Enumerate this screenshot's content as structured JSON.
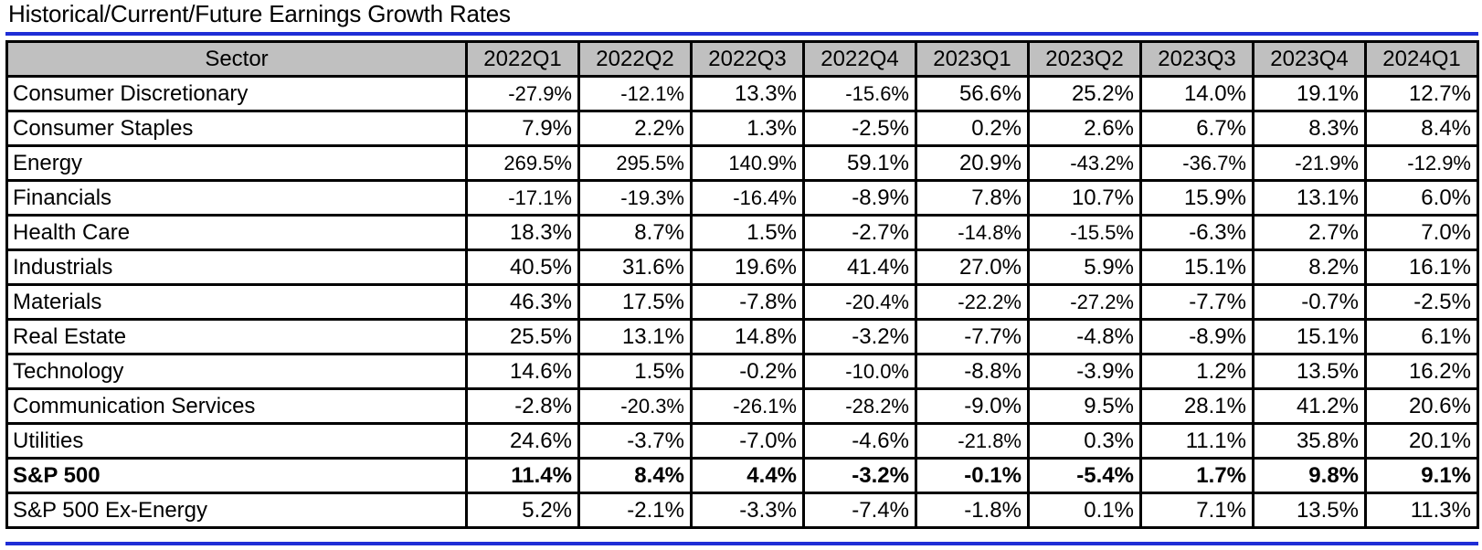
{
  "title": "Historical/Current/Future Earnings Growth Rates",
  "columns": [
    "Sector",
    "2022Q1",
    "2022Q2",
    "2022Q3",
    "2022Q4",
    "2023Q1",
    "2023Q2",
    "2023Q3",
    "2023Q4",
    "2024Q1"
  ],
  "rows": [
    {
      "sector": "Consumer Discretionary",
      "values": [
        "-27.9%",
        "-12.1%",
        "13.3%",
        "-15.6%",
        "56.6%",
        "25.2%",
        "14.0%",
        "19.1%",
        "12.7%"
      ]
    },
    {
      "sector": "Consumer Staples",
      "values": [
        "7.9%",
        "2.2%",
        "1.3%",
        "-2.5%",
        "0.2%",
        "2.6%",
        "6.7%",
        "8.3%",
        "8.4%"
      ]
    },
    {
      "sector": "Energy",
      "values": [
        "269.5%",
        "295.5%",
        "140.9%",
        "59.1%",
        "20.9%",
        "-43.2%",
        "-36.7%",
        "-21.9%",
        "-12.9%"
      ]
    },
    {
      "sector": "Financials",
      "values": [
        "-17.1%",
        "-19.3%",
        "-16.4%",
        "-8.9%",
        "7.8%",
        "10.7%",
        "15.9%",
        "13.1%",
        "6.0%"
      ]
    },
    {
      "sector": "Health Care",
      "values": [
        "18.3%",
        "8.7%",
        "1.5%",
        "-2.7%",
        "-14.8%",
        "-15.5%",
        "-6.3%",
        "2.7%",
        "7.0%"
      ]
    },
    {
      "sector": "Industrials",
      "values": [
        "40.5%",
        "31.6%",
        "19.6%",
        "41.4%",
        "27.0%",
        "5.9%",
        "15.1%",
        "8.2%",
        "16.1%"
      ]
    },
    {
      "sector": "Materials",
      "values": [
        "46.3%",
        "17.5%",
        "-7.8%",
        "-20.4%",
        "-22.2%",
        "-27.2%",
        "-7.7%",
        "-0.7%",
        "-2.5%"
      ]
    },
    {
      "sector": "Real Estate",
      "values": [
        "25.5%",
        "13.1%",
        "14.8%",
        "-3.2%",
        "-7.7%",
        "-4.8%",
        "-8.9%",
        "15.1%",
        "6.1%"
      ]
    },
    {
      "sector": "Technology",
      "values": [
        "14.6%",
        "1.5%",
        "-0.2%",
        "-10.0%",
        "-8.8%",
        "-3.9%",
        "1.2%",
        "13.5%",
        "16.2%"
      ]
    },
    {
      "sector": "Communication Services",
      "values": [
        "-2.8%",
        "-20.3%",
        "-26.1%",
        "-28.2%",
        "-9.0%",
        "9.5%",
        "28.1%",
        "41.2%",
        "20.6%"
      ]
    },
    {
      "sector": "Utilities",
      "values": [
        "24.6%",
        "-3.7%",
        "-7.0%",
        "-4.6%",
        "-21.8%",
        "0.3%",
        "11.1%",
        "35.8%",
        "20.1%"
      ]
    },
    {
      "sector": "S&P 500",
      "bold": true,
      "values": [
        "11.4%",
        "8.4%",
        "4.4%",
        "-3.2%",
        "-0.1%",
        "-5.4%",
        "1.7%",
        "9.8%",
        "9.1%"
      ]
    },
    {
      "sector": "S&P 500 Ex-Energy",
      "values": [
        "5.2%",
        "-2.1%",
        "-3.3%",
        "-7.4%",
        "-1.8%",
        "0.1%",
        "7.1%",
        "13.5%",
        "11.3%"
      ]
    }
  ],
  "colors": {
    "header_bg": "#c0c0c0",
    "rule": "#1f2ed6",
    "border": "#000000"
  }
}
